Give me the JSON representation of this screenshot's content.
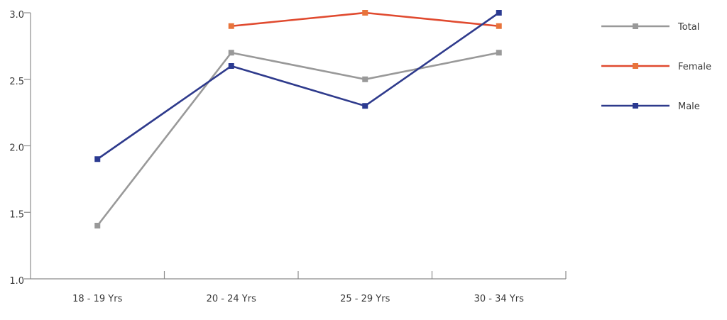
{
  "chart_data": {
    "type": "line",
    "title": "",
    "xlabel": "",
    "ylabel": "",
    "categories": [
      "18 - 19 Yrs",
      "20 - 24 Yrs",
      "25 - 29 Yrs",
      "30 - 34 Yrs"
    ],
    "ylim": [
      1.0,
      3.0
    ],
    "yticks": [
      "1.0",
      "1.5",
      "2.0",
      "2.5",
      "3.0"
    ],
    "grid": false,
    "legend_position": "right",
    "series": [
      {
        "name": "Total",
        "color": "#999999",
        "values": [
          1.4,
          2.7,
          2.5,
          2.7
        ]
      },
      {
        "name": "Female",
        "color": "#e04a2f",
        "marker_color": "#e8743b",
        "values": [
          null,
          2.9,
          3.0,
          2.9
        ]
      },
      {
        "name": "Male",
        "color": "#2e3a8c",
        "marker_color": "#2b3a91",
        "values": [
          1.9,
          2.6,
          2.3,
          3.0
        ]
      }
    ]
  }
}
